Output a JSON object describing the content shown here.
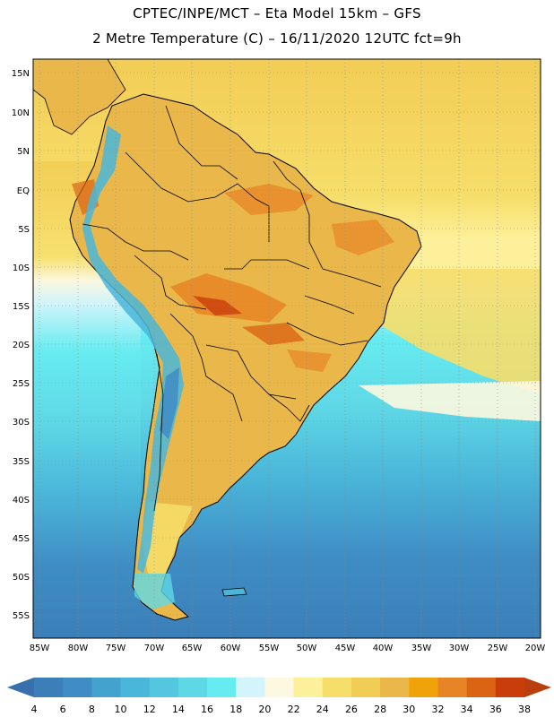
{
  "title_line1": "CPTEC/INPE/MCT –  Eta Model 15km – GFS",
  "title_line2": "2 Metre Temperature (C) – 16/11/2020 12UTC fct=9h",
  "lat_labels": [
    "15N",
    "10N",
    "5N",
    "EQ",
    "5S",
    "10S",
    "15S",
    "20S",
    "25S",
    "30S",
    "35S",
    "40S",
    "45S",
    "50S",
    "55S"
  ],
  "lon_labels": [
    "85W",
    "80W",
    "75W",
    "70W",
    "65W",
    "60W",
    "55W",
    "50W",
    "45W",
    "40W",
    "35W",
    "30W",
    "25W",
    "20W"
  ],
  "colorbar": {
    "ticks": [
      "4",
      "6",
      "8",
      "10",
      "12",
      "14",
      "16",
      "18",
      "20",
      "22",
      "24",
      "26",
      "28",
      "30",
      "32",
      "34",
      "36",
      "38"
    ],
    "colors": [
      "#3c7fb8",
      "#3f8dc4",
      "#44a2cf",
      "#4ab6d9",
      "#55c6df",
      "#5fd8e6",
      "#66ecf0",
      "#d2f4fa",
      "#fdf8e0",
      "#fdf09a",
      "#f6de6a",
      "#f2cd55",
      "#eab84a",
      "#f0a20a",
      "#e78425",
      "#db6414",
      "#c83d0a"
    ],
    "arrow_left_color": "#3870ad",
    "arrow_right_color": "#b8400e"
  }
}
